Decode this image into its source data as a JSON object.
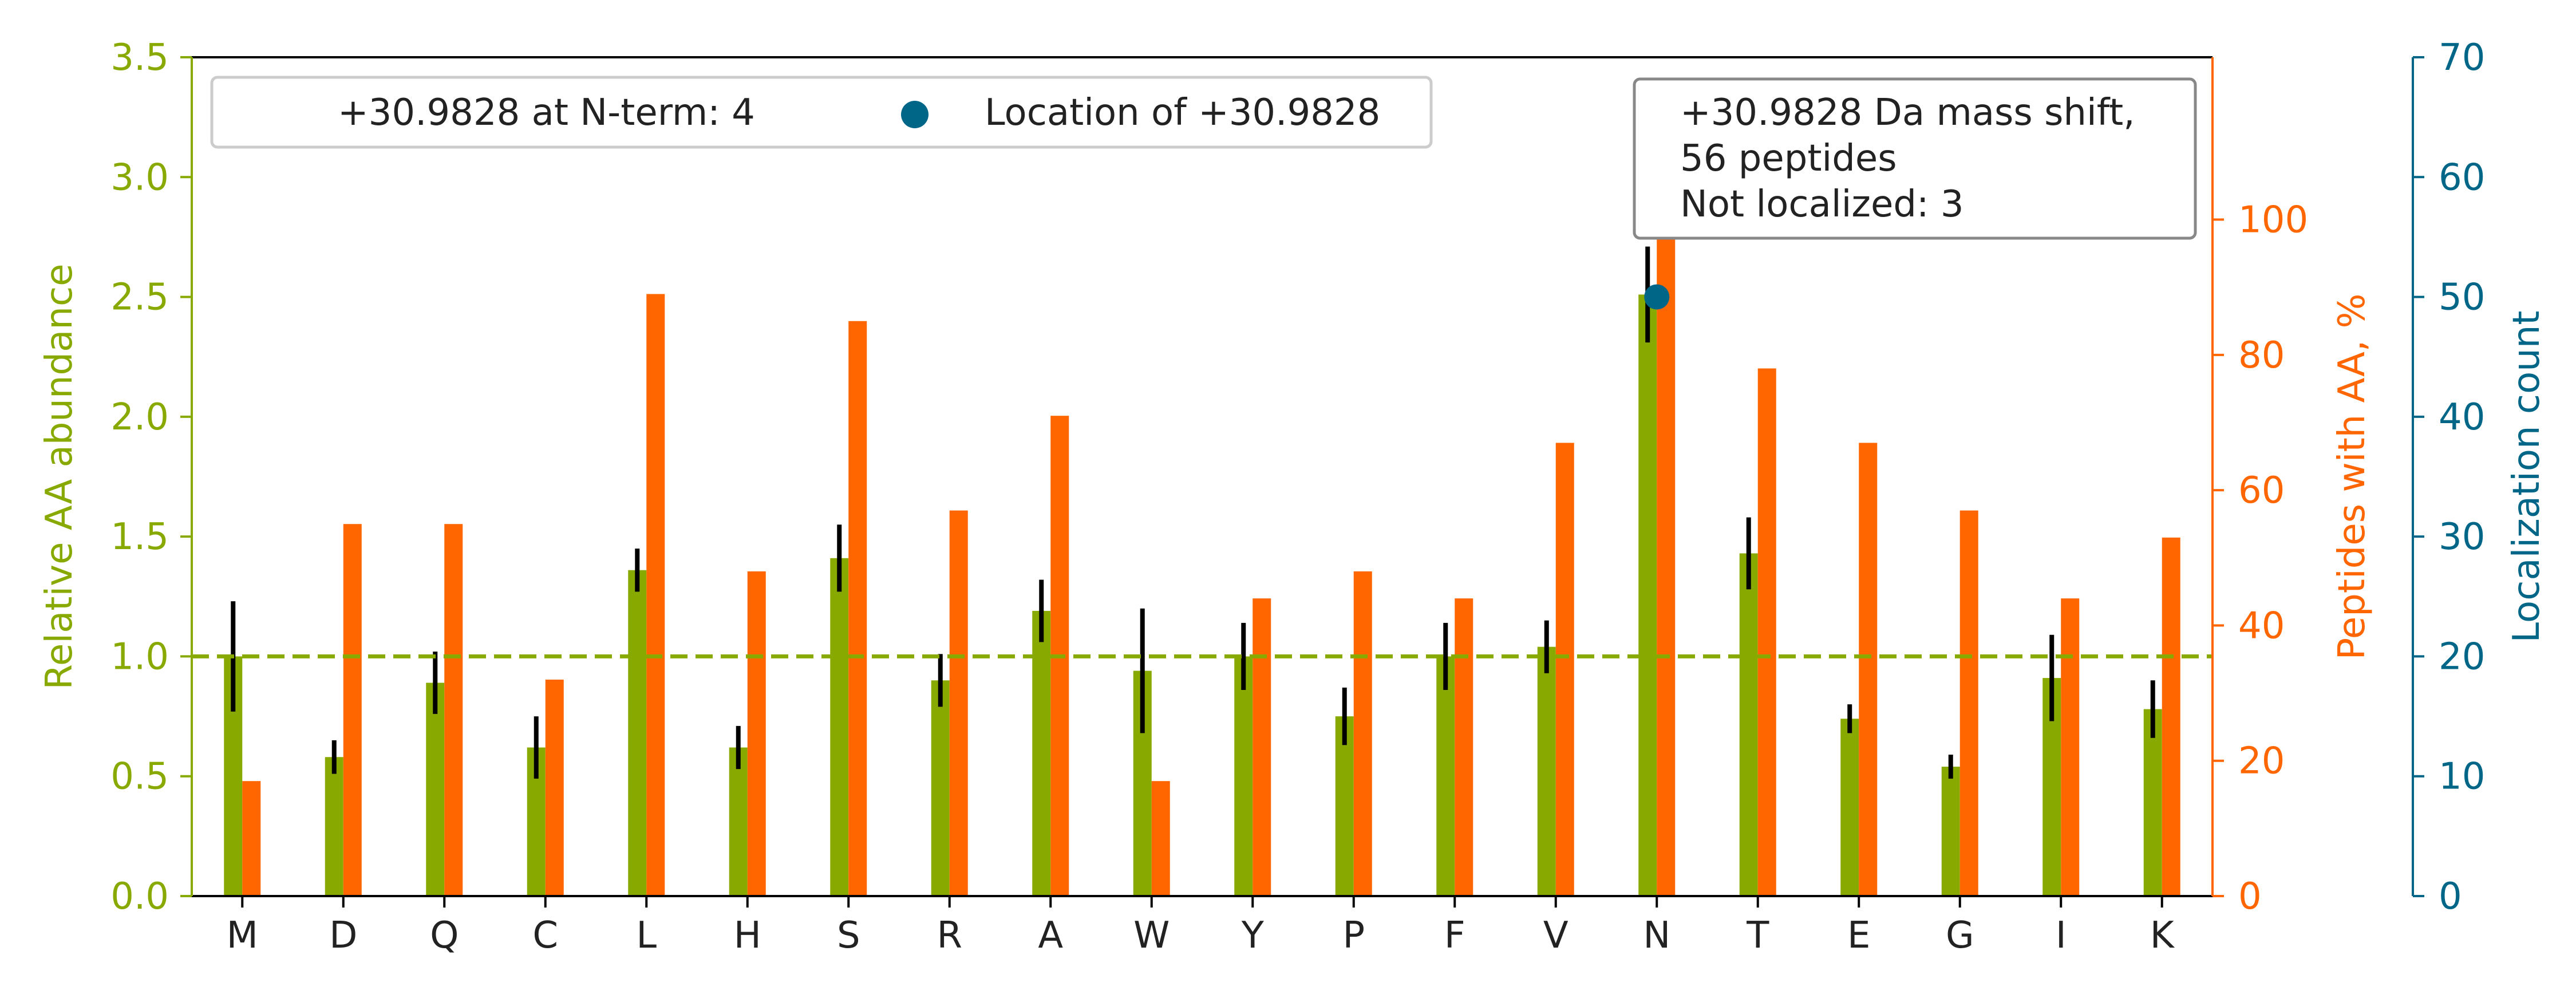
{
  "chart_data": {
    "type": "bar",
    "categories": [
      "M",
      "D",
      "Q",
      "C",
      "L",
      "H",
      "S",
      "R",
      "A",
      "W",
      "Y",
      "P",
      "F",
      "V",
      "N",
      "T",
      "E",
      "G",
      "I",
      "K"
    ],
    "series": [
      {
        "name": "Relative AA abundance",
        "axis": "left",
        "values": [
          1.0,
          0.58,
          0.89,
          0.62,
          1.36,
          0.62,
          1.41,
          0.9,
          1.19,
          0.94,
          1.0,
          0.75,
          1.0,
          1.04,
          2.51,
          1.43,
          0.74,
          0.54,
          0.91,
          0.78
        ],
        "error": [
          0.23,
          0.07,
          0.13,
          0.13,
          0.09,
          0.09,
          0.14,
          0.11,
          0.13,
          0.26,
          0.14,
          0.12,
          0.14,
          0.11,
          0.2,
          0.15,
          0.06,
          0.05,
          0.18,
          0.12
        ]
      },
      {
        "name": "Peptides with AA, %",
        "axis": "right",
        "values": [
          17,
          55,
          55,
          32,
          89,
          48,
          85,
          57,
          71,
          17,
          44,
          48,
          44,
          67,
          100,
          78,
          67,
          57,
          44,
          53
        ]
      },
      {
        "name": "Location of +30.9828",
        "axis": "far-right",
        "type": "scatter",
        "points": [
          {
            "category": "N",
            "value": 50
          }
        ]
      }
    ],
    "reference_line": {
      "value": 1.0,
      "style": "dashed"
    },
    "y_left": {
      "label": "Relative AA abundance",
      "range": [
        0,
        3.5
      ],
      "ticks": [
        "0.0",
        "0.5",
        "1.0",
        "1.5",
        "2.0",
        "2.5",
        "3.0",
        "3.5"
      ]
    },
    "y_right": {
      "label": "Peptides with AA, %",
      "range": [
        0,
        124
      ],
      "ticks": [
        "0",
        "20",
        "40",
        "60",
        "80",
        "100"
      ]
    },
    "y_far_right": {
      "label": "Localization count",
      "range": [
        0,
        70
      ],
      "ticks": [
        "0",
        "10",
        "20",
        "30",
        "40",
        "50",
        "60",
        "70"
      ]
    },
    "legend": {
      "placement": "top-left",
      "entries": [
        "+30.9828 at N-term: 4",
        "Location of +30.9828"
      ]
    },
    "annotation": {
      "placement": "top-right",
      "lines": [
        "+30.9828 Da mass shift,",
        "56 peptides",
        "Not localized: 3"
      ]
    },
    "colors": {
      "abundance": "#88aa00",
      "peptides": "#ff6600",
      "localization": "#006688",
      "errorbar": "#000000"
    }
  }
}
